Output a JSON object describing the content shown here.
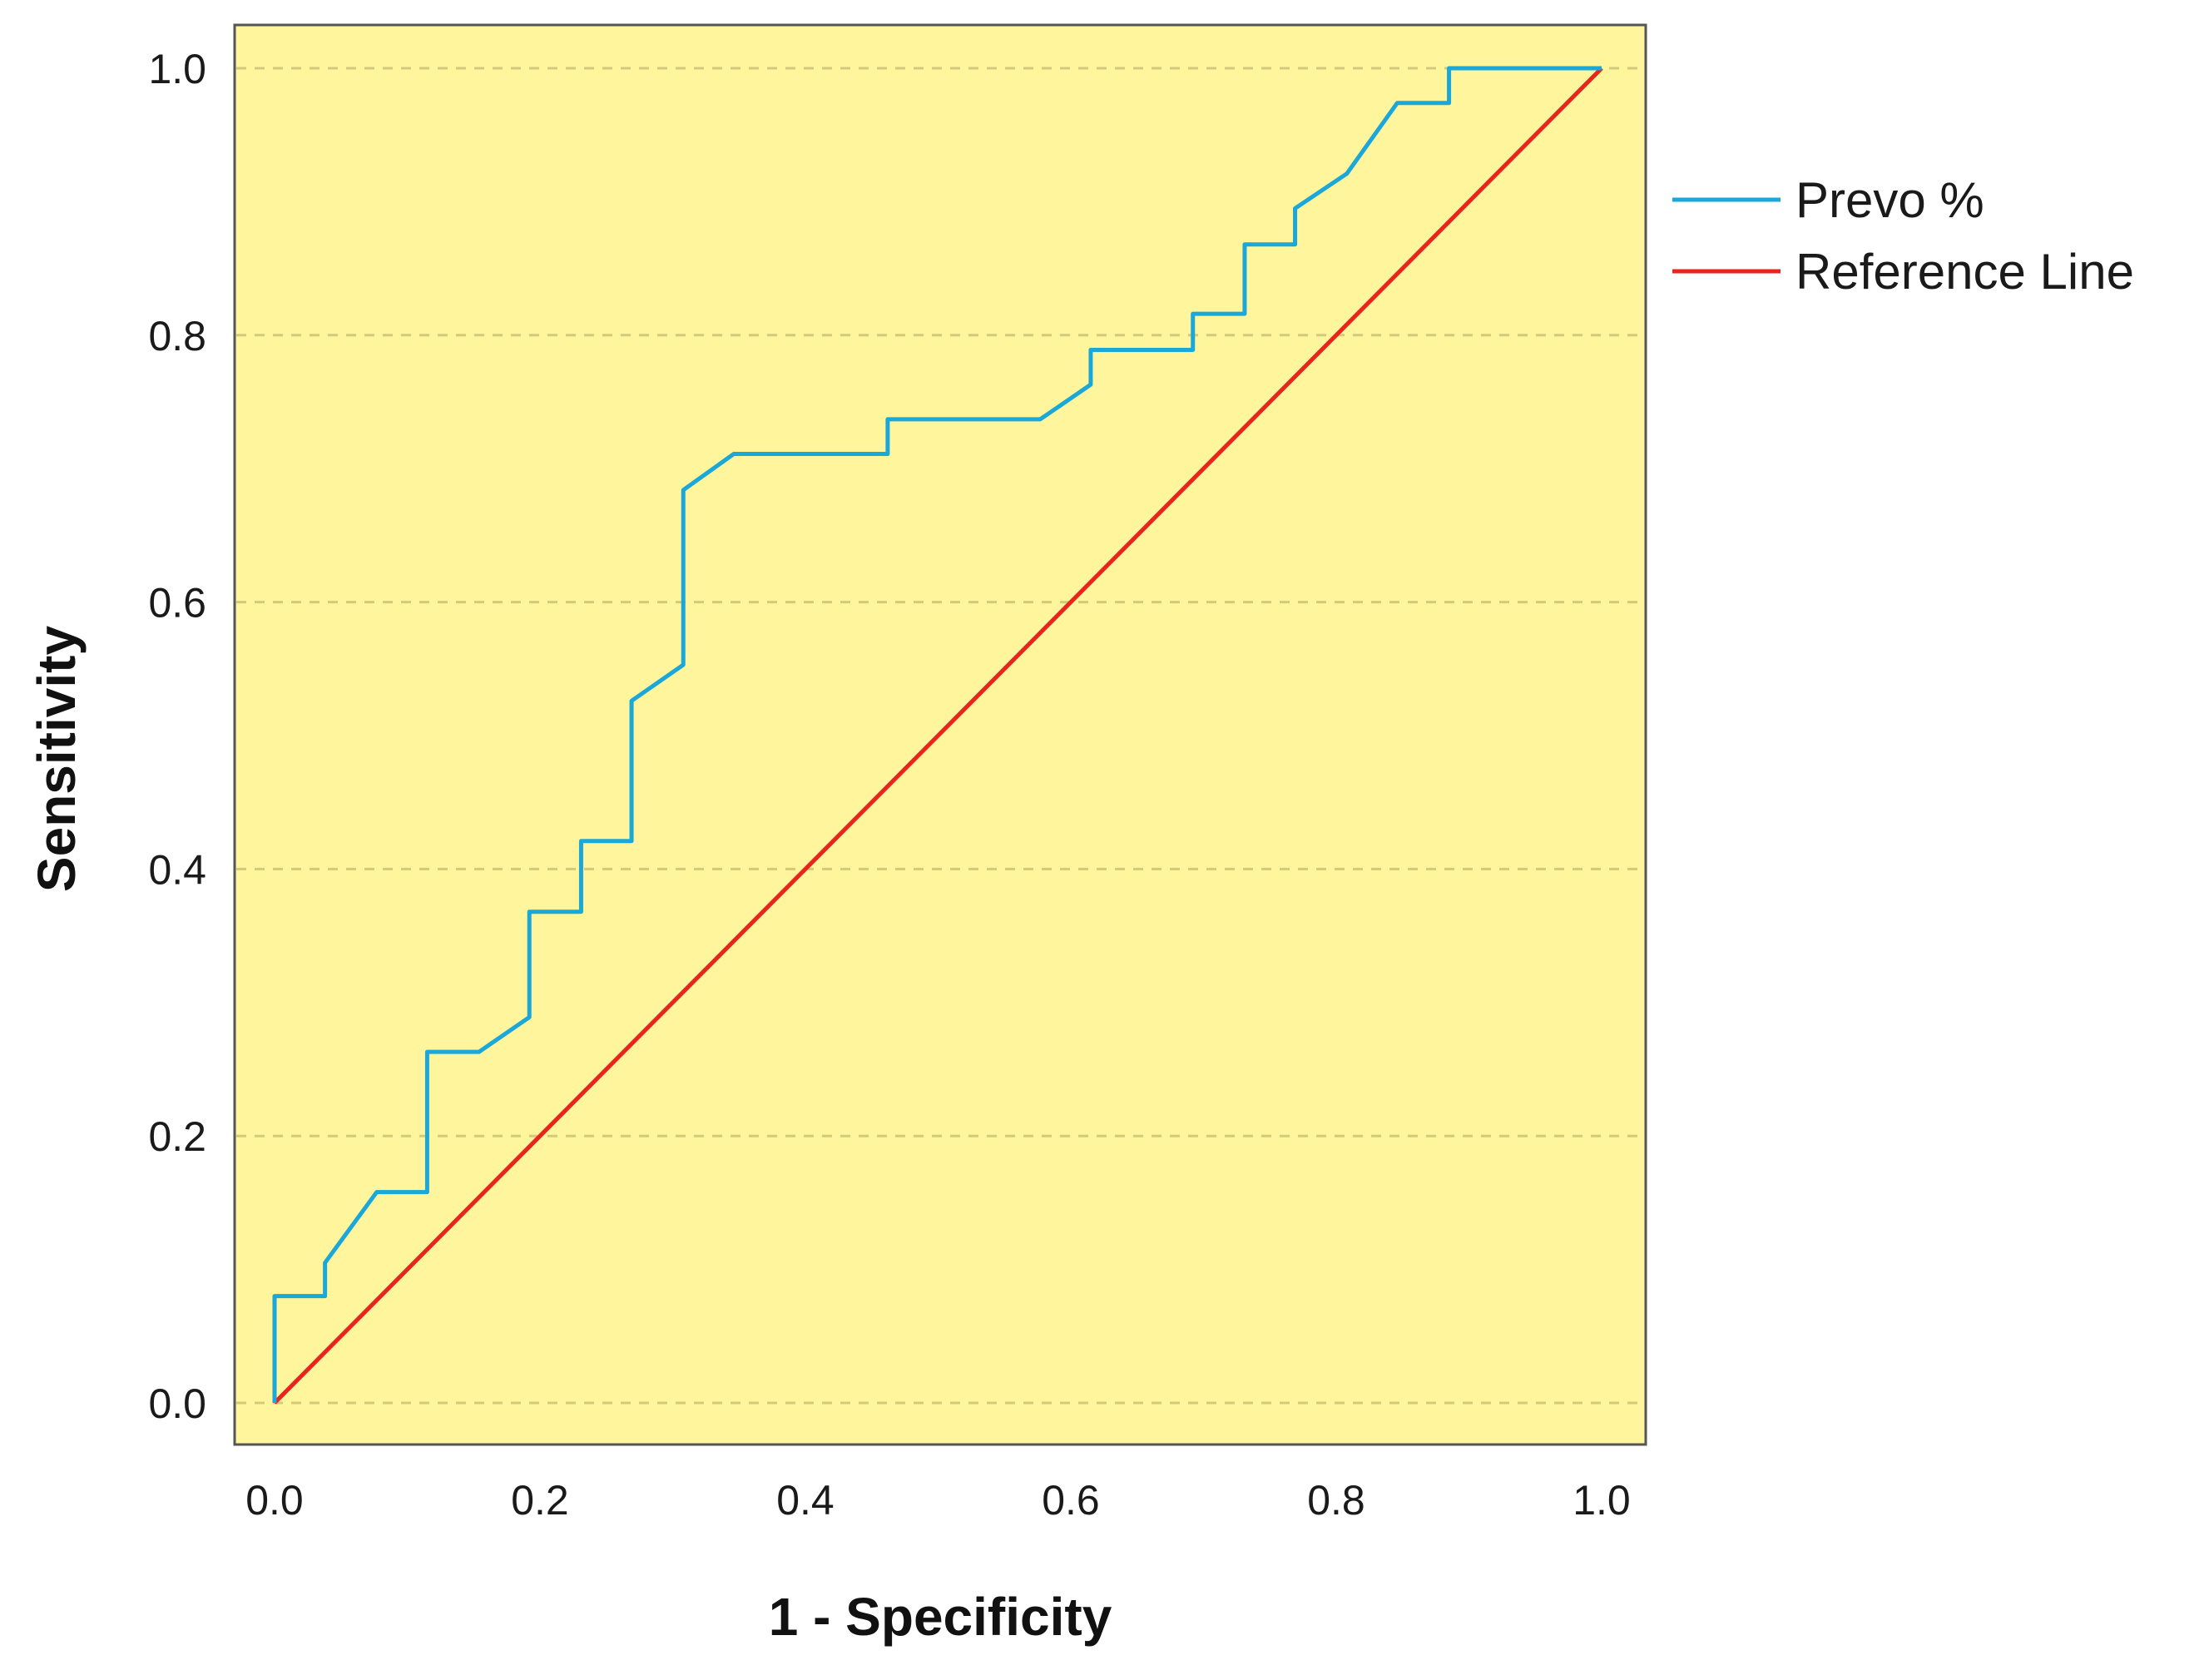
{
  "chart_data": {
    "type": "line",
    "title": "",
    "xlabel": "1 - Specificity",
    "ylabel": "Sensitivity",
    "xlim": [
      0,
      1
    ],
    "ylim": [
      0,
      1
    ],
    "xticks": [
      "0.0",
      "0.2",
      "0.4",
      "0.6",
      "0.8",
      "1.0"
    ],
    "yticks": [
      "0.0",
      "0.2",
      "0.4",
      "0.6",
      "0.8",
      "1.0"
    ],
    "tick_values": [
      0,
      0.2,
      0.4,
      0.6,
      0.8,
      1.0
    ],
    "grid": "horizontal dashed",
    "plot_background": "#fff59d",
    "legend_position": "right",
    "series": [
      {
        "name": "Prevo %",
        "color": "#1aa7d9",
        "points": [
          [
            0,
            0
          ],
          [
            0,
            0.08
          ],
          [
            0.038,
            0.08
          ],
          [
            0.038,
            0.105
          ],
          [
            0.077,
            0.158
          ],
          [
            0.115,
            0.158
          ],
          [
            0.115,
            0.263
          ],
          [
            0.154,
            0.263
          ],
          [
            0.192,
            0.289
          ],
          [
            0.192,
            0.368
          ],
          [
            0.231,
            0.368
          ],
          [
            0.231,
            0.421
          ],
          [
            0.269,
            0.421
          ],
          [
            0.269,
            0.526
          ],
          [
            0.308,
            0.553
          ],
          [
            0.308,
            0.684
          ],
          [
            0.346,
            0.711
          ],
          [
            0.462,
            0.711
          ],
          [
            0.462,
            0.737
          ],
          [
            0.577,
            0.737
          ],
          [
            0.615,
            0.763
          ],
          [
            0.615,
            0.789
          ],
          [
            0.692,
            0.789
          ],
          [
            0.692,
            0.816
          ],
          [
            0.731,
            0.816
          ],
          [
            0.731,
            0.868
          ],
          [
            0.769,
            0.868
          ],
          [
            0.769,
            0.895
          ],
          [
            0.808,
            0.921
          ],
          [
            0.846,
            0.974
          ],
          [
            0.885,
            0.974
          ],
          [
            0.885,
            1.0
          ],
          [
            1.0,
            1.0
          ]
        ]
      },
      {
        "name": "Reference Line",
        "color": "#e8241c",
        "points": [
          [
            0,
            0
          ],
          [
            1,
            1
          ]
        ]
      }
    ]
  }
}
